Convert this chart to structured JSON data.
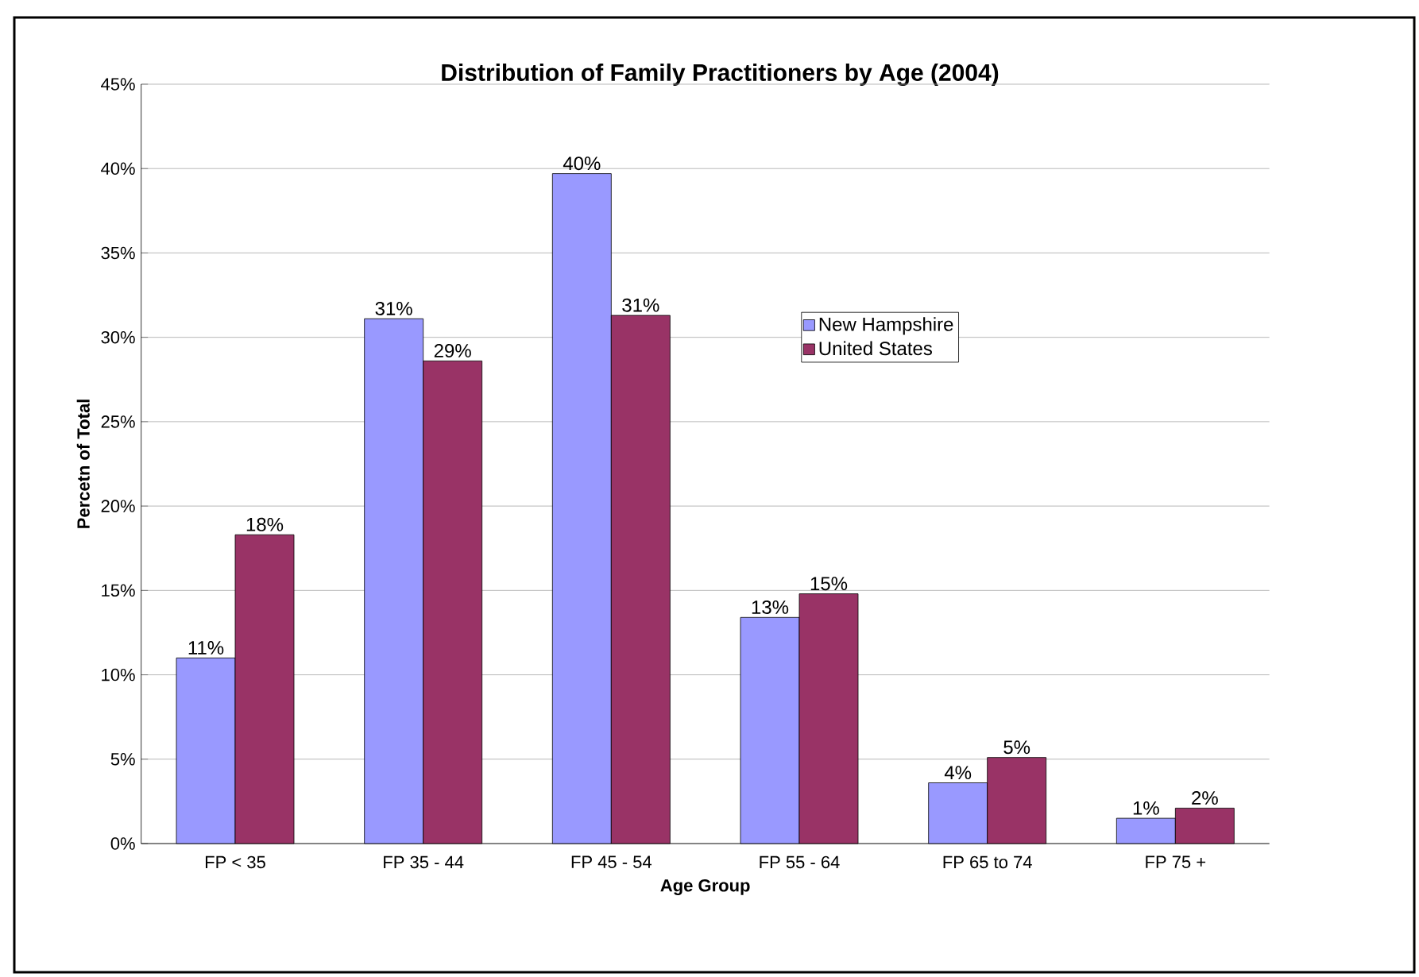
{
  "chart_data": {
    "type": "bar",
    "title": "Distribution of Family Practitioners by Age (2004)",
    "xlabel": "Age Group",
    "ylabel": "Percetn of Total",
    "categories": [
      "FP < 35",
      "FP 35 - 44",
      "FP 45 - 54",
      "FP 55 - 64",
      "FP 65 to 74",
      "FP 75 +"
    ],
    "series": [
      {
        "name": "New Hampshire",
        "color": "#9999ff",
        "values": [
          11.0,
          31.1,
          39.7,
          13.4,
          3.6,
          1.5
        ],
        "value_labels": [
          "11%",
          "31%",
          "40%",
          "13%",
          "4%",
          "1%"
        ]
      },
      {
        "name": "United States",
        "color": "#993366",
        "values": [
          18.3,
          28.6,
          31.3,
          14.8,
          5.1,
          2.1
        ],
        "value_labels": [
          "18%",
          "29%",
          "31%",
          "15%",
          "5%",
          "2%"
        ]
      }
    ],
    "ylim": [
      0,
      45
    ],
    "yticks": [
      {
        "value": 0,
        "label": "0%"
      },
      {
        "value": 5,
        "label": "5%"
      },
      {
        "value": 10,
        "label": "10%"
      },
      {
        "value": 15,
        "label": "15%"
      },
      {
        "value": 20,
        "label": "20%"
      },
      {
        "value": 25,
        "label": "25%"
      },
      {
        "value": 30,
        "label": "30%"
      },
      {
        "value": 35,
        "label": "35%"
      },
      {
        "value": 40,
        "label": "40%"
      },
      {
        "value": 45,
        "label": "45%"
      }
    ],
    "grid": "y",
    "legend": "top right"
  }
}
